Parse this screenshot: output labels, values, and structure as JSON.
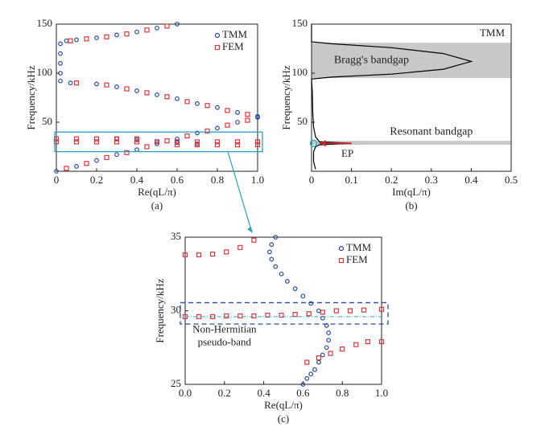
{
  "chart_data": [
    {
      "type": "scatter",
      "panel": "(a)",
      "xlabel": "Re(qL/π)",
      "ylabel": "Frequency/kHz",
      "xlim": [
        0,
        1
      ],
      "ylim": [
        0,
        150
      ],
      "xticks": [
        0,
        0.2,
        0.4,
        0.6,
        0.8,
        {
          "value": 1,
          "label": "1.0"
        }
      ],
      "yticks": [
        50,
        100,
        150
      ],
      "series": [
        {
          "name": "TMM",
          "color": "#2a4aa0",
          "marker": "circle",
          "x": [
            0,
            0.1,
            0.2,
            0.3,
            0.4,
            0.5,
            0.6,
            0.7,
            0.8,
            0.9,
            1.0,
            0.07,
            0.2,
            0.3,
            0.4,
            0.5,
            0.6,
            0.7,
            0.8,
            0.9,
            1.0,
            0.05,
            0.1,
            0.2,
            0.3,
            0.4,
            0.5,
            0.6,
            0.02,
            0.02,
            0.02,
            0.02,
            0.02,
            0.3,
            0.4,
            0.5,
            0.6,
            0.7
          ],
          "values": [
            0,
            5,
            11,
            17,
            22,
            28,
            33,
            39,
            44,
            50,
            55,
            90,
            89,
            86,
            82,
            78,
            74,
            69,
            65,
            60,
            56,
            133,
            134,
            136,
            139,
            142,
            146,
            150,
            92,
            100,
            110,
            120,
            130,
            33,
            32,
            30,
            29,
            28
          ]
        },
        {
          "name": "FEM",
          "color": "#d9363e",
          "marker": "square",
          "x": [
            0.05,
            0.15,
            0.25,
            0.35,
            0.45,
            0.55,
            0.65,
            0.75,
            0.85,
            0.95,
            0.1,
            0.25,
            0.35,
            0.45,
            0.55,
            0.65,
            0.75,
            0.85,
            0.95,
            0.07,
            0.15,
            0.25,
            0.35,
            0.45,
            0.55,
            0,
            0.1,
            0.2,
            0.3,
            0.4,
            0,
            0.1,
            0.2,
            0.3,
            0.4,
            0.5,
            0.6,
            0.7,
            0.8,
            0.9,
            1.0,
            0.6,
            0.7,
            0.8,
            0.9,
            1.0
          ],
          "values": [
            3,
            8,
            14,
            19,
            25,
            31,
            36,
            41,
            47,
            52,
            90,
            88,
            84,
            80,
            76,
            71,
            67,
            62,
            58,
            133,
            135,
            137,
            140,
            144,
            148,
            33,
            33,
            33,
            33,
            33,
            30,
            30,
            30,
            30,
            30,
            30,
            30,
            30,
            30,
            30,
            30,
            27,
            27,
            27,
            27,
            27
          ]
        }
      ]
    },
    {
      "type": "line",
      "panel": "(b)",
      "xlabel": "Im(qL/π)",
      "ylabel": "Frequency/kHz",
      "xlim": [
        0,
        0.5
      ],
      "ylim": [
        0,
        150
      ],
      "xticks": [
        0,
        0.1,
        0.2,
        0.3,
        0.4,
        0.5
      ],
      "yticks": [
        50,
        100,
        150
      ],
      "bands": [
        {
          "label": "Bragg's bandgap",
          "from": 95,
          "to": 131,
          "color": "#c8c8c8"
        },
        {
          "label": "Resonant bandgap",
          "from": 27,
          "to": 31,
          "color": "#c8c8c8"
        }
      ],
      "annotations": [
        "EP"
      ],
      "series": [
        {
          "name": "TMM",
          "color": "#000000",
          "x": [
            0.01,
            0.005,
            0.005,
            0.01,
            0.02,
            0.1,
            0.02,
            0.01,
            0.005,
            0.003,
            0.002,
            0,
            0.05,
            0.2,
            0.33,
            0.4,
            0.33,
            0.2,
            0.05,
            0,
            0
          ],
          "values": [
            2,
            10,
            20,
            25,
            27,
            28.5,
            30,
            35,
            45,
            60,
            80,
            94,
            96,
            99,
            104,
            112,
            120,
            126,
            130,
            132,
            150
          ]
        }
      ]
    },
    {
      "type": "scatter",
      "panel": "(c)",
      "xlabel": "Re(qL/π)",
      "ylabel": "Frequency/kHz",
      "xlim": [
        0,
        1
      ],
      "ylim": [
        25,
        35
      ],
      "xticks": [
        {
          "value": 0,
          "label": "0.0"
        },
        0.2,
        0.4,
        0.6,
        0.8,
        {
          "value": 1,
          "label": "1.0"
        }
      ],
      "yticks": [
        25,
        30,
        35
      ],
      "annotations": [
        "Non-Hermitian",
        "pseudo-band"
      ],
      "series": [
        {
          "name": "TMM",
          "color": "#2a4aa0",
          "marker": "circle",
          "x": [
            0.46,
            0.44,
            0.43,
            0.44,
            0.46,
            0.49,
            0.52,
            0.56,
            0.6,
            0.64,
            0.68,
            0.7,
            0.72,
            0.73,
            0.73,
            0.72,
            0.7,
            0.68,
            0.66,
            0.64,
            0.62,
            0.6
          ],
          "values": [
            35,
            34.5,
            34,
            33.5,
            33,
            32.5,
            32,
            31.5,
            31,
            30.5,
            30,
            29.5,
            29,
            28.5,
            28,
            27.5,
            27,
            26.5,
            26,
            25.7,
            25.4,
            25
          ]
        },
        {
          "name": "FEM",
          "color": "#d9363e",
          "marker": "square",
          "x": [
            0,
            0.07,
            0.14,
            0.21,
            0.28,
            0.35,
            0,
            0.07,
            0.14,
            0.21,
            0.28,
            0.35,
            0.42,
            0.49,
            0.56,
            0.63,
            0.7,
            0.77,
            0.84,
            0.91,
            1.0,
            0.62,
            0.68,
            0.74,
            0.8,
            0.87,
            0.93,
            1.0
          ],
          "values": [
            33.8,
            33.8,
            33.85,
            34,
            34.3,
            34.8,
            29.6,
            29.6,
            29.6,
            29.65,
            29.65,
            29.65,
            29.7,
            29.7,
            29.75,
            29.8,
            29.9,
            30,
            30,
            30.05,
            30.1,
            26.5,
            26.8,
            27.1,
            27.4,
            27.7,
            27.9,
            27.9
          ]
        }
      ]
    }
  ]
}
